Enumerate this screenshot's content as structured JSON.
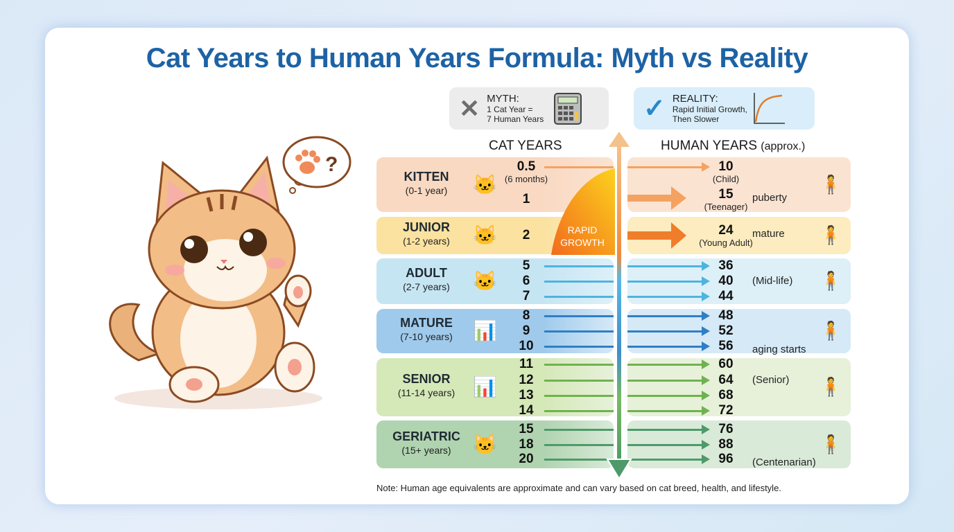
{
  "title": "Cat Years to Human Years Formula: Myth vs Reality",
  "myth": {
    "heading": "MYTH:",
    "text1": "1 Cat Year =",
    "text2": "7 Human Years",
    "icon": "x-icon",
    "icon2": "calculator-icon"
  },
  "reality": {
    "heading": "REALITY:",
    "text1": "Rapid Initial Growth,",
    "text2": "Then Slower",
    "icon": "check-icon",
    "icon2": "growth-curve-icon"
  },
  "headers": {
    "cat": "CAT YEARS",
    "human": "HUMAN YEARS",
    "human_suffix": "(approx.)"
  },
  "rapid_growth": {
    "line1": "RAPID",
    "line2": "GROWTH"
  },
  "colors": {
    "title": "#1d62a5",
    "kitten": "#f4a261",
    "junior": "#f07d2a",
    "adult": "#4fb3e0",
    "mature": "#2f7fc4",
    "senior": "#6fb24f",
    "geriatric": "#4e9a6a"
  },
  "stages": [
    {
      "name": "KITTEN",
      "range": "(0-1 year)",
      "rows": [
        {
          "cat": "0.5",
          "cat_sub": "(6 months)",
          "human": "10",
          "human_sub": "(Child)"
        },
        {
          "cat": "1",
          "human": "15",
          "human_sub": "(Teenager)",
          "note": "puberty"
        }
      ]
    },
    {
      "name": "JUNIOR",
      "range": "(1-2 years)",
      "rows": [
        {
          "cat": "2",
          "human": "24",
          "human_sub": "(Young Adult)",
          "note": "mature"
        }
      ]
    },
    {
      "name": "ADULT",
      "range": "(2-7 years)",
      "rows": [
        {
          "cat": "5",
          "human": "36"
        },
        {
          "cat": "6",
          "human": "40",
          "note": "(Mid-life)"
        },
        {
          "cat": "7",
          "human": "44"
        }
      ]
    },
    {
      "name": "MATURE",
      "range": "(7-10 years)",
      "rows": [
        {
          "cat": "8",
          "human": "48"
        },
        {
          "cat": "9",
          "human": "52"
        },
        {
          "cat": "10",
          "human": "56",
          "note": "aging starts"
        }
      ]
    },
    {
      "name": "SENIOR",
      "range": "(11-14 years)",
      "rows": [
        {
          "cat": "11",
          "human": "60"
        },
        {
          "cat": "12",
          "human": "64",
          "note": "(Senior)"
        },
        {
          "cat": "13",
          "human": "68"
        },
        {
          "cat": "14",
          "human": "72"
        }
      ]
    },
    {
      "name": "GERIATRIC",
      "range": "(15+ years)",
      "rows": [
        {
          "cat": "15",
          "human": "76"
        },
        {
          "cat": "18",
          "human": "88"
        },
        {
          "cat": "20",
          "human": "96",
          "note": "(Centenarian)"
        }
      ]
    }
  ],
  "footnote": "Note: Human age equivalents are approximate and can vary based on cat breed, health, and lifestyle."
}
